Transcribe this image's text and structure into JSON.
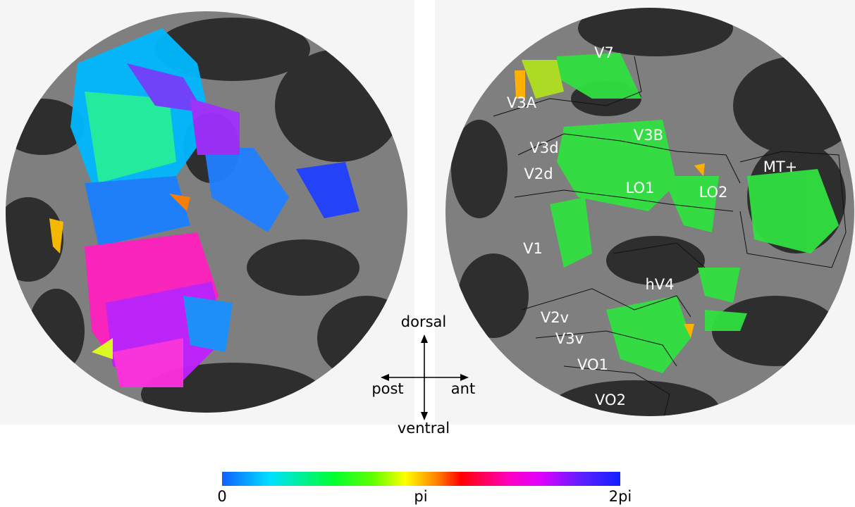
{
  "areas": [
    "V7",
    "V3A",
    "V3B",
    "V3d",
    "V2d",
    "MT+",
    "LO1",
    "LO2",
    "V1",
    "hV4",
    "V2v",
    "V3v",
    "VO1",
    "VO2"
  ],
  "orientation": {
    "up": "dorsal",
    "left": "post",
    "right": "ant",
    "down": "ventral"
  },
  "colorbar": {
    "ticks": [
      "0",
      "pi",
      "2pi"
    ]
  }
}
